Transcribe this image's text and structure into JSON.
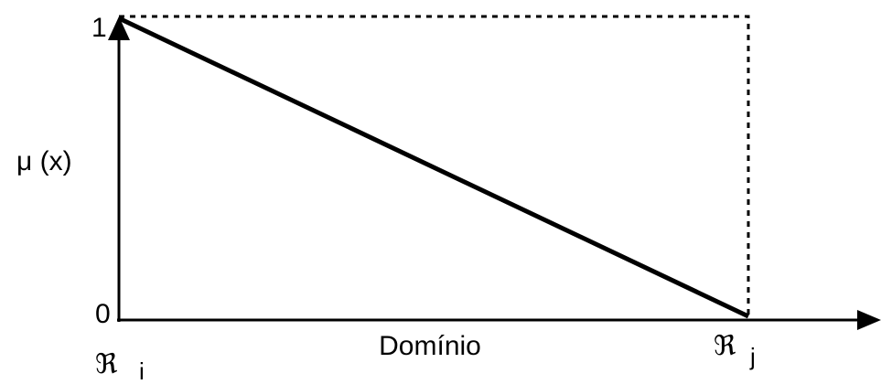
{
  "y_axis": {
    "label": "μ (x)",
    "top": "1",
    "bottom": "0"
  },
  "x_axis": {
    "label": "Domínio",
    "start": {
      "symbol": "ℜ",
      "sub": "i"
    },
    "end": {
      "symbol": "ℜ",
      "sub": "j"
    }
  }
}
